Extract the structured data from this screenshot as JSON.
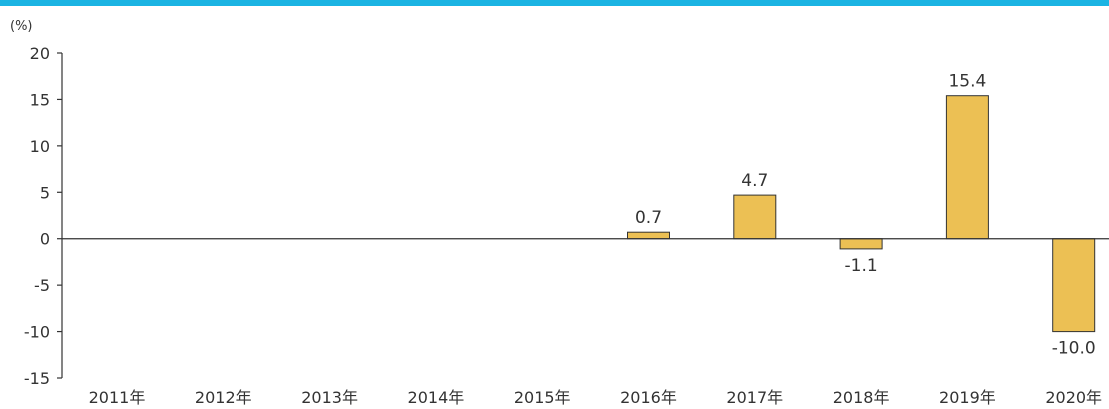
{
  "colors": {
    "accent_bar": "#1bb4e3",
    "bar_fill": "#ecc054",
    "bar_stroke": "#333333",
    "axis": "#333333"
  },
  "chart_data": {
    "type": "bar",
    "title": "",
    "xlabel": "",
    "ylabel": "(%)",
    "ylim": [
      -15,
      20
    ],
    "yticks": [
      20,
      15,
      10,
      5,
      0,
      -5,
      -10,
      -15
    ],
    "ytick_labels": [
      "20",
      "15",
      "10",
      "5",
      "0",
      "-5",
      "-10",
      "-15"
    ],
    "categories": [
      "2011年",
      "2012年",
      "2013年",
      "2014年",
      "2015年",
      "2016年",
      "2017年",
      "2018年",
      "2019年",
      "2020年"
    ],
    "values": [
      null,
      null,
      null,
      null,
      null,
      0.7,
      4.7,
      -1.1,
      15.4,
      -10.0
    ],
    "value_labels": [
      "",
      "",
      "",
      "",
      "",
      "0.7",
      "4.7",
      "-1.1",
      "15.4",
      "-10.0"
    ]
  }
}
